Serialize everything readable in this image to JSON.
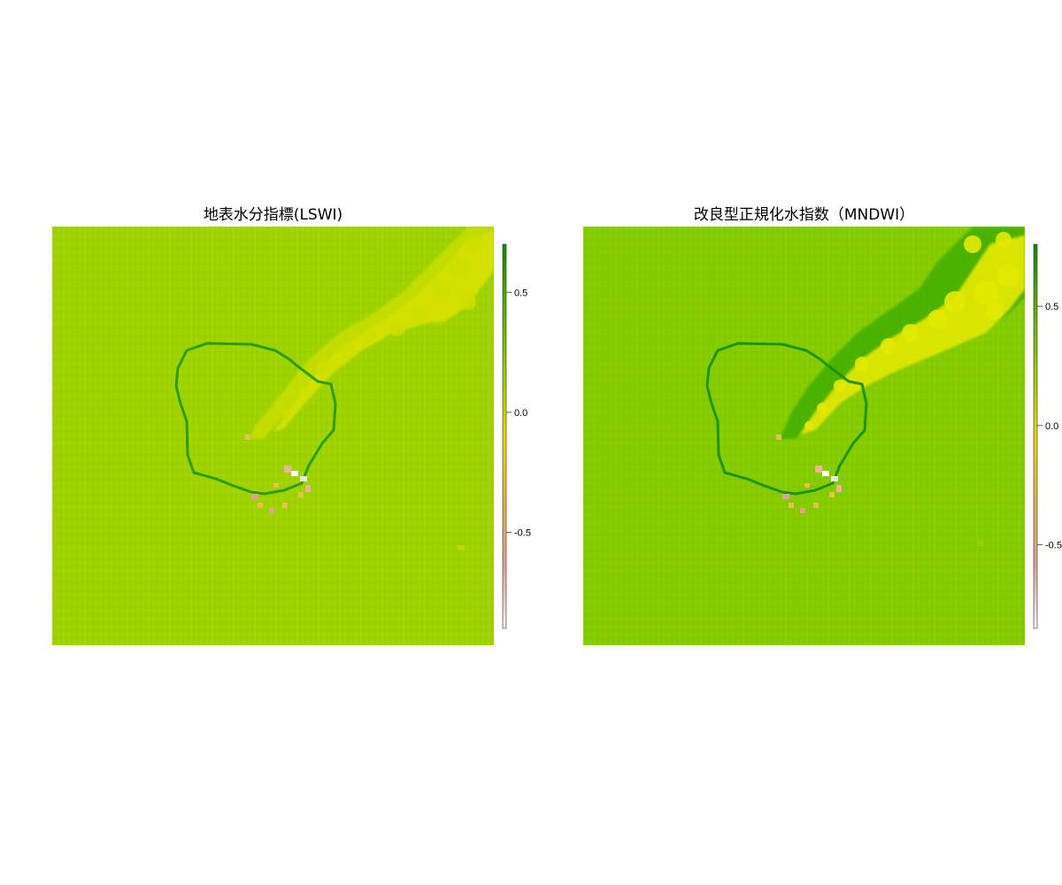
{
  "panels": [
    {
      "title": "地表水分指標(LSWI)",
      "legend_range": [
        -0.9,
        0.7
      ],
      "ticks": [
        {
          "value": 0.5,
          "label": "0.5"
        },
        {
          "value": 0.0,
          "label": "0.0"
        },
        {
          "value": -0.5,
          "label": "-0.5"
        }
      ],
      "background_color": "#9fd400",
      "plume_color": "#d4e200"
    },
    {
      "title": "改良型正規化水指数（MNDWI）",
      "legend_range": [
        -0.85,
        0.76
      ],
      "ticks": [
        {
          "value": 0.5,
          "label": "0.5"
        },
        {
          "value": 0.0,
          "label": "0.0"
        },
        {
          "value": -0.5,
          "label": "-0.5"
        }
      ],
      "background_color": "#84cc00",
      "plume_color": "#e0ea00"
    }
  ],
  "legend_colors": [
    "#f2f2f2",
    "#e0a090",
    "#e8b040",
    "#e8d800",
    "#9acd00",
    "#5cb000",
    "#108a00"
  ]
}
